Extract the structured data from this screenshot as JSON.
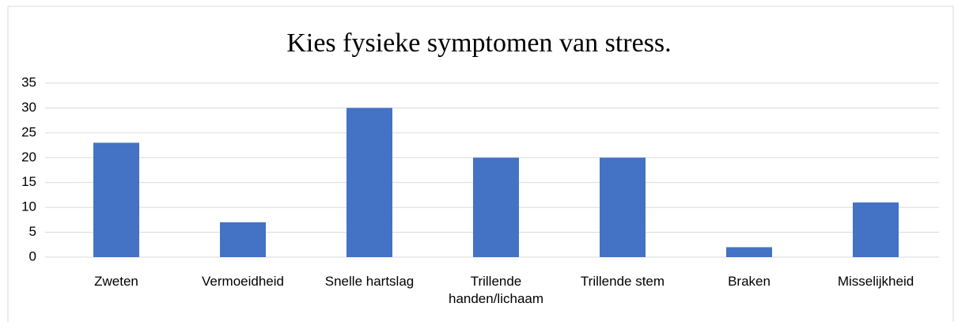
{
  "chart_data": {
    "type": "bar",
    "title": "Kies fysieke symptomen van stress.",
    "categories": [
      "Zweten",
      "Vermoeidheid",
      "Snelle hartslag",
      "Trillende handen/lichaam",
      "Trillende stem",
      "Braken",
      "Misselijkheid"
    ],
    "values": [
      23,
      7,
      30,
      20,
      20,
      2,
      11
    ],
    "color": "#4472c4",
    "ylim": [
      0,
      35
    ],
    "yticks": [
      0,
      5,
      10,
      15,
      20,
      25,
      30,
      35
    ],
    "grid": true
  }
}
